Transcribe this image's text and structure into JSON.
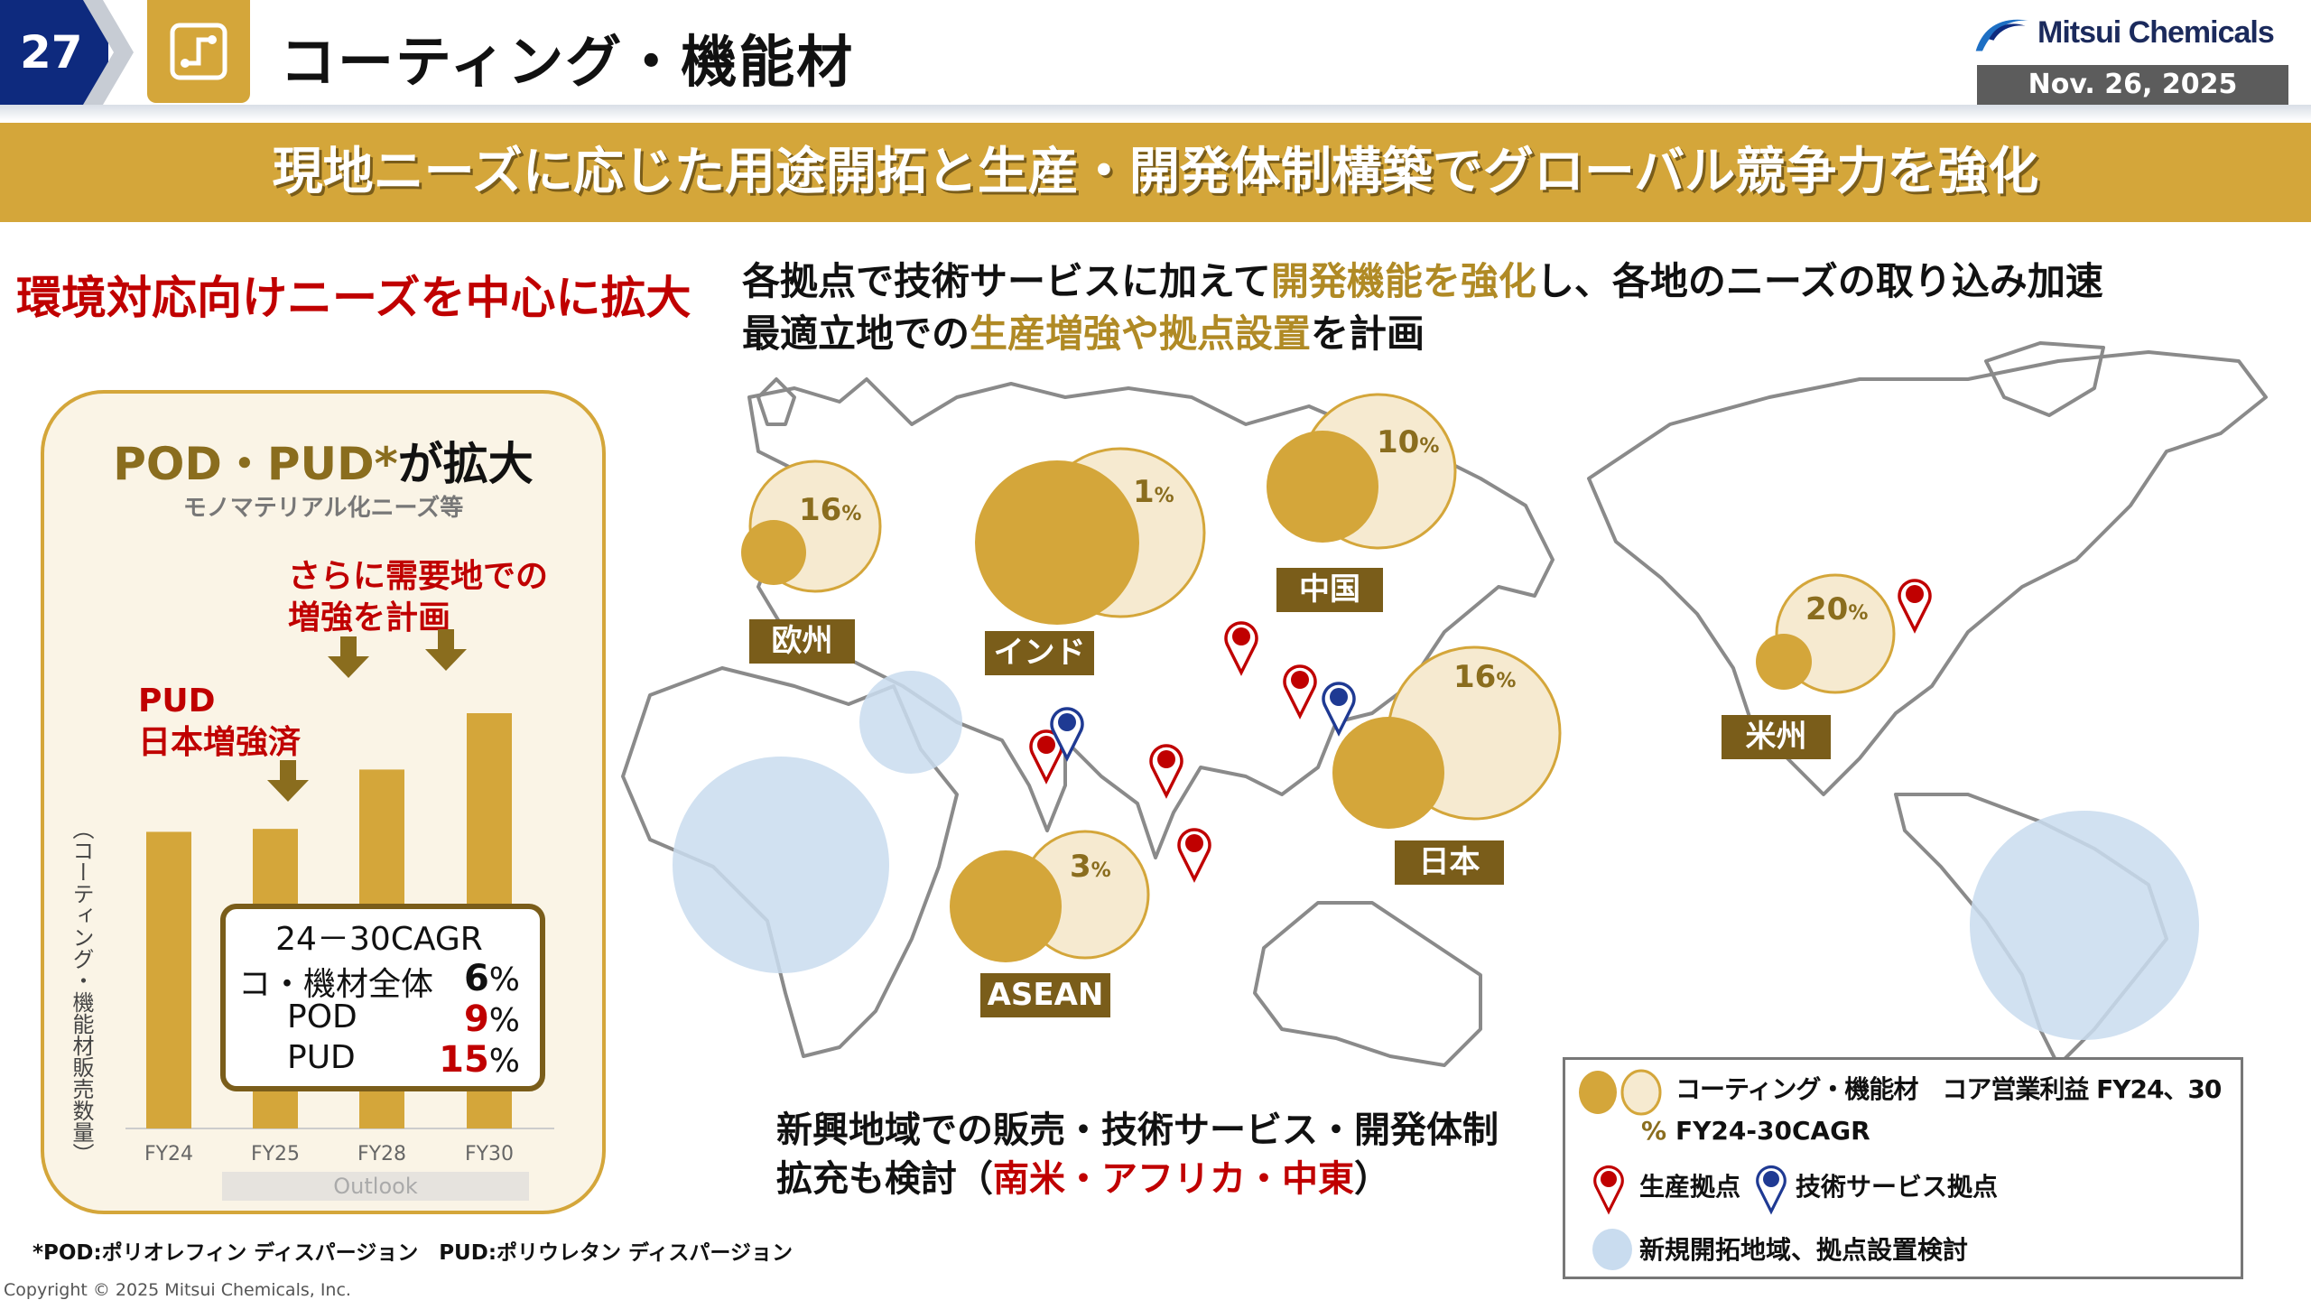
{
  "header": {
    "page_number": "27",
    "title": "コーティング・機能材",
    "logo_text": "Mitsui Chemicals",
    "date": "Nov. 26, 2025",
    "icon": "circuit-icon"
  },
  "banner": "現地ニーズに応じた用途開拓と生産・開発体制構築でグローバル競争力を強化",
  "left_heading": "環境対応向けニーズを中心に拡大",
  "right_heading": {
    "line1": [
      {
        "t": "各拠点で技術サービスに加えて",
        "c": ""
      },
      {
        "t": "開発機能を強化",
        "c": "gold"
      },
      {
        "t": "し、各地のニーズの取り込み加速",
        "c": ""
      }
    ],
    "line2": [
      {
        "t": "最適立地での",
        "c": ""
      },
      {
        "t": "生産増強や拠点設置",
        "c": "gold"
      },
      {
        "t": "を計画",
        "c": ""
      }
    ]
  },
  "panel": {
    "title_gold": "POD・PUD*",
    "title_black": "が拡大",
    "subtitle": "モノマテリアル化ニーズ等",
    "note_top": [
      "さらに需要地での",
      "増強を計画"
    ],
    "note_left": [
      "PUD",
      "日本増強済"
    ],
    "outlook": "Outlook",
    "cagr": {
      "title": "24－30CAGR",
      "rows": [
        {
          "label": "コ・機材全体",
          "value": "6",
          "unit": "%",
          "color": "#111111"
        },
        {
          "label": "POD",
          "value": "9",
          "unit": "%",
          "color": "#c00000"
        },
        {
          "label": "PUD",
          "value": "15",
          "unit": "%",
          "color": "#c00000"
        }
      ]
    }
  },
  "chart_data": {
    "type": "bar",
    "categories": [
      "FY24",
      "FY25",
      "FY28",
      "FY30"
    ],
    "values": [
      100,
      101,
      121,
      140
    ],
    "ylabel": "（コーティング・機能材販売数量）",
    "xlabel": "",
    "bar_color": "#d4a63a",
    "grid": false
  },
  "footnote": "*POD:ポリオレフィン ディスパージョン　PUD:ポリウレタン ディスパージョン",
  "copyright": "Copyright © 2025 Mitsui Chemicals, Inc.",
  "map": {
    "regions": [
      {
        "name": "欧州",
        "cagr": "16"
      },
      {
        "name": "インド",
        "cagr": "1"
      },
      {
        "name": "中国",
        "cagr": "10"
      },
      {
        "name": "日本",
        "cagr": "16"
      },
      {
        "name": "ASEAN",
        "cagr": "3"
      },
      {
        "name": "米州",
        "cagr": "20"
      }
    ],
    "percent_sign": "%",
    "production_sites": 6,
    "tech_service_sites": 2,
    "new_regions": [
      "中東",
      "アフリカ",
      "南米"
    ]
  },
  "bottom_text": {
    "line1": "新興地域での販売・技術サービス・開発体制",
    "line2_a": "拡充も検討（",
    "line2_red": "南米・アフリカ・中東",
    "line2_b": "）"
  },
  "legend": {
    "bubble": "コーティング・機能材　コア営業利益 FY24、30",
    "pct_symbol": "%",
    "pct": "FY24-30CAGR",
    "production": "生産拠点",
    "tech": "技術サービス拠点",
    "new": "新規開拓地域、拠点設置検討"
  },
  "colors": {
    "gold": "#d4a63a",
    "light_gold": "#f6ead0",
    "dark_gold": "#7a5d1a",
    "red": "#c00000",
    "blue": "#1f3a93",
    "light_blue": "#c9dcef",
    "navy": "#0e2a7e"
  }
}
